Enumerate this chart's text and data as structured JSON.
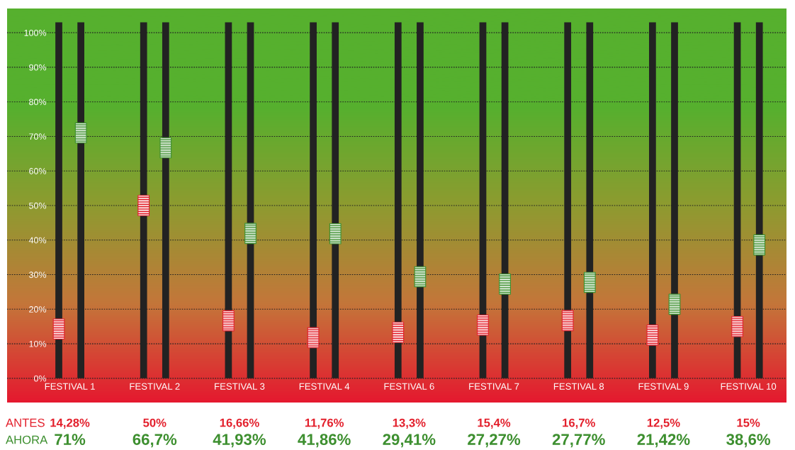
{
  "chart_data": {
    "type": "scatter",
    "categories": [
      "FESTIVAL 1",
      "FESTIVAL 2",
      "FESTIVAL 3",
      "FESTIVAL 4",
      "FESTIVAL 6",
      "FESTIVAL 7",
      "FESTIVAL 8",
      "FESTIVAL 9",
      "FESTIVAL 10"
    ],
    "series": [
      {
        "name": "ANTES",
        "color": "#e3202c",
        "values": [
          14.28,
          50,
          16.66,
          11.76,
          13.3,
          15.4,
          16.7,
          12.5,
          15
        ],
        "value_labels": [
          "14,28%",
          "50%",
          "16,66%",
          "11,76%",
          "13,3%",
          "15,4%",
          "16,7%",
          "12,5%",
          "15%"
        ]
      },
      {
        "name": "AHORA",
        "color": "#3d8f2f",
        "values": [
          71,
          66.7,
          41.93,
          41.86,
          29.41,
          27.27,
          27.77,
          21.42,
          38.6
        ],
        "value_labels": [
          "71%",
          "66,7%",
          "41,93%",
          "41,86%",
          "29,41%",
          "27,27%",
          "27,77%",
          "21,42%",
          "38,6%"
        ]
      }
    ],
    "ylim": [
      -7,
      107
    ],
    "yticks": [
      {
        "value": 0,
        "label": "0%"
      },
      {
        "value": 10,
        "label": "10%"
      },
      {
        "value": 20,
        "label": "20%"
      },
      {
        "value": 30,
        "label": "30%"
      },
      {
        "value": 40,
        "label": "40%"
      },
      {
        "value": 50,
        "label": "50%"
      },
      {
        "value": 60,
        "label": "60%"
      },
      {
        "value": 70,
        "label": "70%"
      },
      {
        "value": 80,
        "label": "80%"
      },
      {
        "value": 90,
        "label": "90%"
      },
      {
        "value": 100,
        "label": "100%"
      }
    ],
    "grid": "y",
    "marker": "square",
    "legend": false
  }
}
